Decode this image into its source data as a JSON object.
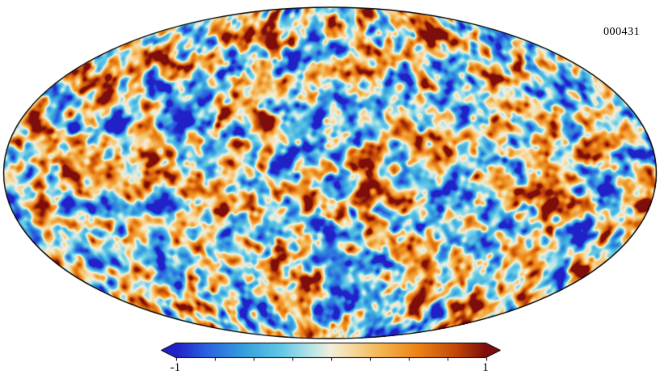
{
  "figure": {
    "background": "#ffffff",
    "outline_color": "#000000",
    "annotation": "000431"
  },
  "chart_data": {
    "type": "heatmap",
    "projection": "mollweide",
    "title": "",
    "annotation": "000431",
    "description": "Full-sky CMB-like Gaussian random temperature fluctuation field rendered as a Mollweide-projection ellipse; small-scale hot (orange/red) and cold (cyan/blue) blobs separated by pale filaments fill the map. Individual pixel values are a random field and not readable as discrete data points.",
    "value_range": [
      -1,
      1
    ],
    "colorbar": {
      "min": -1,
      "max": 1,
      "orientation": "horizontal",
      "extend": "both",
      "tick_labels": [
        "-1",
        "1"
      ],
      "num_ticks": 9,
      "colormap_stops": [
        {
          "t": 0.0,
          "color": "#2121c8"
        },
        {
          "t": 0.1,
          "color": "#2b63e0"
        },
        {
          "t": 0.22,
          "color": "#36a0dd"
        },
        {
          "t": 0.34,
          "color": "#62c8e6"
        },
        {
          "t": 0.44,
          "color": "#bce6e8"
        },
        {
          "t": 0.5,
          "color": "#f2efdd"
        },
        {
          "t": 0.56,
          "color": "#f6dca6"
        },
        {
          "t": 0.66,
          "color": "#f4b653"
        },
        {
          "t": 0.78,
          "color": "#ec8416"
        },
        {
          "t": 0.9,
          "color": "#c44a08"
        },
        {
          "t": 1.0,
          "color": "#7e0e0c"
        }
      ]
    },
    "field": {
      "seed": 431,
      "gain": 1.6,
      "octaves": [
        {
          "scale": 30,
          "amp": 0.42
        },
        {
          "scale": 14,
          "amp": 0.58
        },
        {
          "scale": 7,
          "amp": 0.28
        }
      ]
    }
  }
}
